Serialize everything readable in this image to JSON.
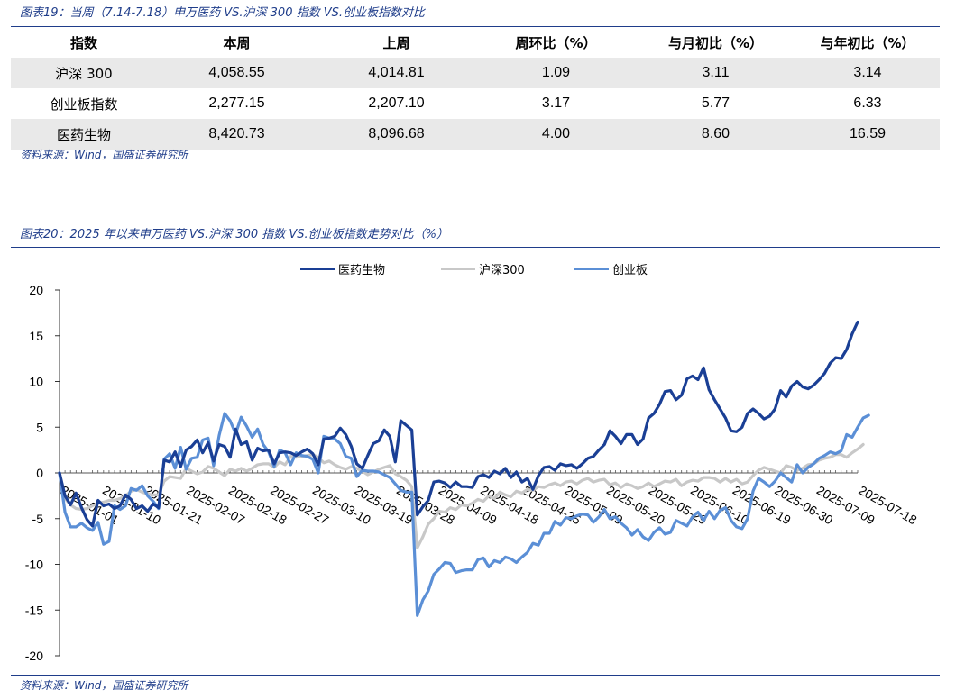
{
  "fig19": {
    "caption": "图表19：当周（7.14-7.18）申万医药 VS.沪深 300 指数 VS.创业板指数对比",
    "headers": [
      "指数",
      "本周",
      "上周",
      "周环比（%）",
      "与月初比（%）",
      "与年初比（%）"
    ],
    "rows": [
      [
        "沪深 300",
        "4,058.55",
        "4,014.81",
        "1.09",
        "3.11",
        "3.14"
      ],
      [
        "创业板指数",
        "2,277.15",
        "2,207.10",
        "3.17",
        "5.77",
        "6.33"
      ],
      [
        "医药生物",
        "8,420.73",
        "8,096.68",
        "4.00",
        "8.60",
        "16.59"
      ]
    ],
    "source": "资料来源：Wind，国盛证券研究所"
  },
  "fig20": {
    "caption": "图表20：2025 年以来申万医药 VS.沪深 300 指数 VS.创业板指数走势对比（%）",
    "source": "资料来源：Wind，国盛证券研究所"
  },
  "chart_data": {
    "type": "line",
    "title": "",
    "xlabel": "",
    "ylabel": "",
    "ylim": [
      -20,
      20
    ],
    "yticks": [
      20,
      15,
      10,
      5,
      0,
      -5,
      -10,
      -15,
      -20
    ],
    "xticks": [
      "2025-01-01",
      "2025-01-10",
      "2025-01-21",
      "2025-02-07",
      "2025-02-18",
      "2025-02-27",
      "2025-03-10",
      "2025-03-19",
      "2025-03-28",
      "2025-04-09",
      "2025-04-18",
      "2025-04-25",
      "2025-05-09",
      "2025-05-20",
      "2025-05-29",
      "2025-06-10",
      "2025-06-19",
      "2025-06-30",
      "2025-07-09",
      "2025-07-18"
    ],
    "legend_position": "top-center",
    "grid": false,
    "colors": {
      "医药生物": "#1a3f95",
      "沪深300": "#c8c8c8",
      "创业板": "#5b8fd6"
    },
    "series": [
      {
        "name": "医药生物",
        "values": [
          0,
          -2.5,
          -3.5,
          -2.2,
          -3.8,
          -5.1,
          -5.8,
          -3.0,
          -3.6,
          -3.4,
          -3.9,
          -3.6,
          -2.4,
          -2.9,
          -3.9,
          -3.6,
          -4.2,
          -3.4,
          -3.8,
          1.4,
          1.2,
          2.3,
          0.7,
          2.5,
          2.9,
          3.6,
          2.2,
          3.3,
          1.3,
          3.1,
          2.9,
          1.7,
          4.8,
          3.1,
          3.4,
          1.4,
          2.7,
          2.4,
          2.5,
          1.0,
          2.2,
          2.3,
          2.2,
          1.9,
          2.3,
          2.6,
          2.1,
          0.9,
          3.7,
          3.8,
          4.0,
          4.9,
          4.2,
          2.9,
          1.0,
          0.5,
          1.9,
          3.2,
          3.5,
          4.7,
          4.0,
          1.2,
          5.7,
          5.2,
          4.7,
          -4.6,
          -3.7,
          -3.0,
          -1.0,
          -0.9,
          -1.1,
          -1.6,
          -1.0,
          -1.5,
          -1.5,
          -1.6,
          -0.4,
          -0.2,
          -0.5,
          0.2,
          -0.1,
          0.5,
          -0.5,
          0.1,
          -1.0,
          -0.6,
          -1.8,
          -0.3,
          0.6,
          0.7,
          0.3,
          1.0,
          0.8,
          0.9,
          0.5,
          1.0,
          1.6,
          1.8,
          2.5,
          3.1,
          4.6,
          4.0,
          3.2,
          4.2,
          4.2,
          3.1,
          3.7,
          6.0,
          6.5,
          7.5,
          8.9,
          9.0,
          8.0,
          8.5,
          10.3,
          10.6,
          10.2,
          11.5,
          9.1,
          8.0,
          7.0,
          6.0,
          4.6,
          4.5,
          5.0,
          6.5,
          7.0,
          6.5,
          5.9,
          6.2,
          7.0,
          9.0,
          8.3,
          9.5,
          10.0,
          9.4,
          9.2,
          9.6,
          10.2,
          10.9,
          12.0,
          12.6,
          12.5,
          13.5,
          15.2,
          16.5
        ]
      },
      {
        "name": "沪深300",
        "values": [
          0,
          -2.8,
          -3.5,
          -3.9,
          -4.0,
          -3.9,
          -3.6,
          -3.3,
          -3.2,
          -3.0,
          -3.0,
          -2.8,
          -2.5,
          -2.0,
          -1.8,
          -2.1,
          -2.3,
          -2.4,
          -2.4,
          -0.9,
          -0.4,
          -0.5,
          -0.6,
          0.5,
          0.2,
          -0.1,
          0.1,
          0.7,
          0.5,
          0.1,
          -0.3,
          0.4,
          0.2,
          0.5,
          0.2,
          0.5,
          0.9,
          1.0,
          1.0,
          0.6,
          1.2,
          0.9,
          1.8,
          1.7,
          1.8,
          1.9,
          2.0,
          1.7,
          1.1,
          1.3,
          0.9,
          0.6,
          0.4,
          0.7,
          0.5,
          0.2,
          -0.2,
          0.1,
          0.4,
          0.6,
          0.8,
          -0.1,
          -0.4,
          -0.8,
          -1.5,
          -8.2,
          -7.0,
          -5.6,
          -5.0,
          -4.2,
          -4.3,
          -3.8,
          -4.0,
          -3.5,
          -3.6,
          -3.3,
          -2.9,
          -3.1,
          -2.5,
          -2.8,
          -2.1,
          -2.4,
          -2.6,
          -2.0,
          -2.2,
          -1.8,
          -1.9,
          -1.5,
          -1.6,
          -1.3,
          -1.1,
          -1.4,
          -1.0,
          -0.9,
          -1.2,
          -0.8,
          -0.6,
          -1.0,
          -0.8,
          -0.7,
          -1.3,
          -1.1,
          -1.6,
          -1.2,
          -1.4,
          -1.7,
          -1.5,
          -1.1,
          -1.5,
          -1.2,
          -0.9,
          -1.0,
          -0.7,
          -1.4,
          -1.0,
          -0.8,
          -0.9,
          -0.5,
          -0.5,
          -0.6,
          -1.0,
          -0.6,
          -1.0,
          -0.7,
          -1.2,
          -1.0,
          -0.3,
          0.3,
          0.6,
          0.4,
          0.2,
          0.0,
          0.8,
          0.6,
          0.3,
          0.5,
          0.9,
          1.0,
          1.4,
          1.6,
          1.7,
          2.0,
          2.0,
          1.7,
          2.2,
          2.6,
          3.1
        ]
      },
      {
        "name": "创业板",
        "values": [
          0,
          -4.3,
          -5.9,
          -5.9,
          -5.5,
          -6.0,
          -6.3,
          -5.4,
          -7.8,
          -7.5,
          -3.6,
          -4.0,
          -3.6,
          -1.7,
          -1.9,
          -1.4,
          -2.5,
          -3.1,
          -3.9,
          1.5,
          2.1,
          0.5,
          2.8,
          0.4,
          1.6,
          1.7,
          3.6,
          3.8,
          0.8,
          4.1,
          6.5,
          5.7,
          4.3,
          6.1,
          5.1,
          3.9,
          4.8,
          3.1,
          2.3,
          0.7,
          2.5,
          2.2,
          0.9,
          2.2,
          1.9,
          1.8,
          1.5,
          0.0,
          4.0,
          3.8,
          3.7,
          3.2,
          1.8,
          1.6,
          -0.4,
          0.3,
          0.2,
          0.2,
          0.1,
          -0.2,
          -0.5,
          -1.2,
          -1.9,
          -2.1,
          -2.1,
          -15.6,
          -13.9,
          -12.9,
          -11.1,
          -10.5,
          -9.8,
          -9.9,
          -10.9,
          -10.7,
          -10.6,
          -10.6,
          -9.5,
          -9.3,
          -10.3,
          -9.6,
          -9.8,
          -9.2,
          -9.4,
          -9.8,
          -9.2,
          -8.7,
          -7.7,
          -7.9,
          -6.6,
          -6.6,
          -5.3,
          -5.7,
          -4.9,
          -5.0,
          -4.7,
          -4.5,
          -4.6,
          -5.4,
          -4.8,
          -4.0,
          -5.0,
          -4.8,
          -5.5,
          -6.0,
          -6.8,
          -6.2,
          -7.0,
          -7.4,
          -6.5,
          -6.0,
          -6.7,
          -6.5,
          -5.2,
          -5.5,
          -5.8,
          -4.8,
          -4.3,
          -5.2,
          -4.2,
          -5.0,
          -4.1,
          -3.8,
          -5.2,
          -5.9,
          -6.1,
          -5.0,
          -2.0,
          -0.6,
          -1.0,
          -1.5,
          -0.9,
          0.0,
          -0.5,
          -1.0,
          0.9,
          0.0,
          0.6,
          1.0,
          1.6,
          1.9,
          2.3,
          2.1,
          2.4,
          4.2,
          3.9,
          5.0,
          6.0,
          6.3
        ]
      }
    ]
  }
}
